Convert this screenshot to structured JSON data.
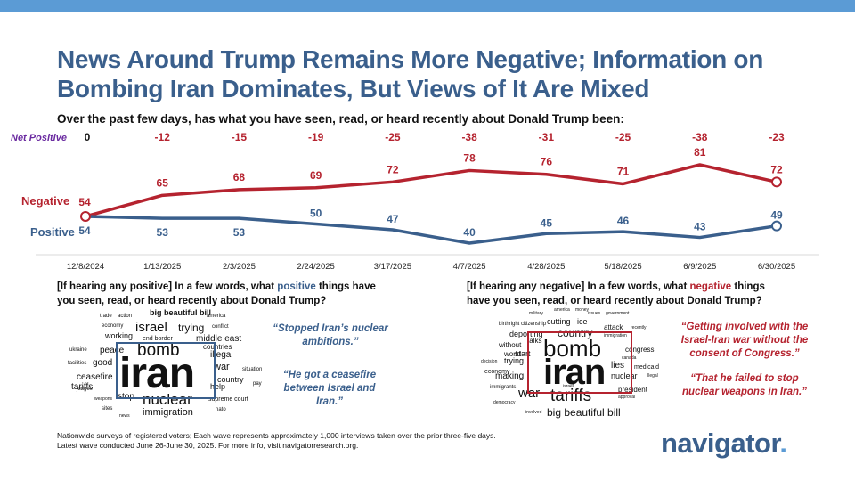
{
  "title": "News Around Trump Remains More Negative; Information on Bombing Iran Dominates, But Views of It Are Mixed",
  "question": "Over the past few days, has what you have seen, read, or heard recently about Donald Trump been:",
  "colors": {
    "negative": "#b5232f",
    "positive": "#3a5f8c",
    "net_label": "#6a2aa0",
    "accent_bar": "#5b9bd5"
  },
  "chart_data": {
    "type": "line",
    "categories": [
      "12/8/2024",
      "1/13/2025",
      "2/3/2025",
      "2/24/2025",
      "3/17/2025",
      "4/7/2025",
      "4/28/2025",
      "5/18/2025",
      "6/9/2025",
      "6/30/2025"
    ],
    "series": [
      {
        "name": "Negative",
        "values": [
          54,
          65,
          68,
          69,
          72,
          78,
          76,
          71,
          81,
          72
        ]
      },
      {
        "name": "Positive",
        "values": [
          54,
          53,
          53,
          50,
          47,
          40,
          45,
          46,
          43,
          49
        ]
      }
    ],
    "net_positive_label": "Net Positive",
    "net_positive": [
      "0",
      "-12",
      "-15",
      "-19",
      "-25",
      "-38",
      "-31",
      "-25",
      "-38",
      "-23"
    ],
    "ylim": [
      35,
      85
    ]
  },
  "positive_panel": {
    "question_before": "[If hearing any positive] In a few words, what ",
    "question_keyword": "positive",
    "question_after": " things have you seen, read, or heard recently about Donald Trump?",
    "words": [
      "big beautiful bill",
      "trade",
      "action",
      "america",
      "economy",
      "israel",
      "trying",
      "conflict",
      "working",
      "end border",
      "middle east",
      "bomb",
      "countries",
      "ukraine",
      "peace",
      "illegal",
      "facilities",
      "good",
      "iran",
      "war",
      "situation",
      "ceasefire",
      "country",
      "pay",
      "judges",
      "tariffs",
      "help",
      "stop",
      "nuclear",
      "supreme court",
      "weapons",
      "sites",
      "immigration",
      "nato",
      "news"
    ],
    "quotes": [
      "“Stopped Iran’s nuclear ambitions.”",
      "“He got a ceasefire between Israel and Iran.”"
    ]
  },
  "negative_panel": {
    "question_before": "[If hearing any negative] In a few words, what ",
    "question_keyword": "negative",
    "question_after": " things have you seen, read, or heard recently about Donald Trump?",
    "words": [
      "military",
      "america",
      "money",
      "issues",
      "government",
      "cutting",
      "ice",
      "birthright citizenship",
      "attack",
      "recently",
      "deporting",
      "country",
      "immigration",
      "talks",
      "without",
      "bomb",
      "congress",
      "world",
      "start",
      "canada",
      "decision",
      "trying",
      "iran",
      "lies",
      "medicaid",
      "economy",
      "nuclear",
      "illegal",
      "making",
      "immigrants",
      "israel",
      "war",
      "tariffs",
      "president",
      "democracy",
      "approval",
      "involved",
      "big beautiful bill"
    ],
    "quotes": [
      "“Getting involved with the Israel-Iran war without the consent of Congress.”",
      "“That he failed to stop nuclear weapons in Iran.”"
    ]
  },
  "footer": {
    "line1": "Nationwide surveys of registered voters; Each wave represents approximately 1,000 interviews taken over the prior three-five days.",
    "line2": "Latest wave conducted June 26-June 30, 2025. For more info, visit navigatorresearch.org."
  },
  "logo": {
    "text": "navigator",
    "dot": "."
  }
}
